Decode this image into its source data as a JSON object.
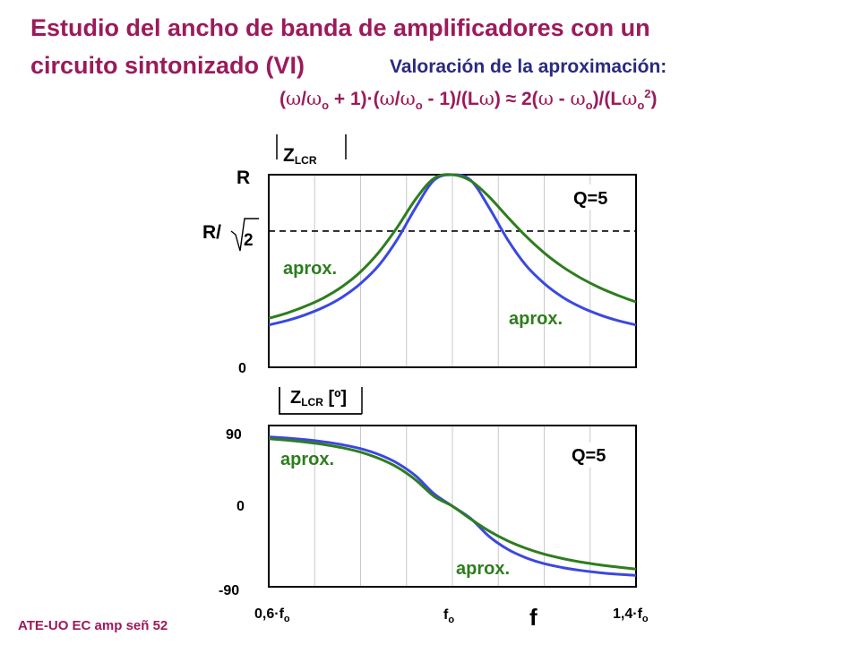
{
  "header": {
    "title_line1": "Estudio del ancho de banda de amplificadores con un",
    "title_line2": "circuito sintonizado (VI)",
    "subtitle": "Valoración de la aproximación:",
    "formula": {
      "open": "(",
      "w": "ω",
      "o": "o",
      "p1": " + 1)·(",
      "p2": " - 1)/(L",
      "p3": ") ≈ 2(",
      "p4": " - ",
      "p5": ")/(L",
      "two": "2",
      "close": ")"
    }
  },
  "footer": "ATE-UO EC amp señ 52",
  "colors": {
    "exact": "#2e7d1e",
    "approx": "#3b48e0",
    "title": "#9c1a5a",
    "subtitle": "#2a2a80"
  },
  "chart_data": [
    {
      "type": "line",
      "title": "|Z_LCR|",
      "title_text": {
        "Z": "Z",
        "sub": "LCR"
      },
      "ylabel_top": "R",
      "ylabel_ref": "R/√2",
      "ylabel_ref_parts": {
        "R": "R/",
        "two": "2"
      },
      "ylabel_bottom": "0",
      "reference_line": {
        "value": 0.7071,
        "style": "dashed"
      },
      "annotation_q": "Q=5",
      "annotation_approx": [
        "aprox.",
        "aprox."
      ],
      "x_range": [
        0.6,
        1.4
      ],
      "y_range": [
        0,
        1
      ],
      "x": [
        0.6,
        0.64,
        0.68,
        0.72,
        0.76,
        0.8,
        0.84,
        0.88,
        0.92,
        0.96,
        1.0,
        1.04,
        1.08,
        1.12,
        1.16,
        1.2,
        1.24,
        1.28,
        1.32,
        1.36,
        1.4
      ],
      "series": [
        {
          "values": [
            0.254,
            0.282,
            0.317,
            0.361,
            0.419,
            0.496,
            0.598,
            0.727,
            0.873,
            0.981,
            1.0,
            0.968,
            0.885,
            0.781,
            0.681,
            0.594,
            0.522,
            0.463,
            0.414,
            0.374,
            0.339
          ]
        },
        {
          "values": [
            0.22,
            0.243,
            0.273,
            0.312,
            0.364,
            0.435,
            0.53,
            0.664,
            0.829,
            0.971,
            1.0,
            0.971,
            0.829,
            0.664,
            0.53,
            0.435,
            0.364,
            0.312,
            0.273,
            0.243,
            0.22
          ]
        }
      ]
    },
    {
      "type": "line",
      "title": "∠Z_LCR [º]",
      "title_text": {
        "Z": "Z",
        "sub": "LCR",
        "unit": " [º]"
      },
      "yticks": [
        "90",
        "0",
        "-90"
      ],
      "annotation_q": "Q=5",
      "annotation_approx": [
        "aprox.",
        "aprox."
      ],
      "xticks": {
        "left": {
          "main": "0,6·f",
          "sub": "o"
        },
        "center": {
          "main": "f",
          "sub": "o"
        },
        "right": {
          "main": "1,4·f",
          "sub": "o"
        }
      },
      "xlabel": "f",
      "x_range": [
        0.6,
        1.4
      ],
      "y_range": [
        -90,
        90
      ],
      "x": [
        0.6,
        0.64,
        0.68,
        0.72,
        0.76,
        0.8,
        0.84,
        0.88,
        0.92,
        0.96,
        1.0,
        1.04,
        1.08,
        1.12,
        1.16,
        1.2,
        1.24,
        1.28,
        1.32,
        1.36,
        1.4
      ],
      "series": [
        {
          "values": [
            75.3,
            73.6,
            71.5,
            68.8,
            65.2,
            60.3,
            53.2,
            43.4,
            29.2,
            11.0,
            0.0,
            -14.5,
            -27.8,
            -38.6,
            -47.0,
            -53.6,
            -58.5,
            -62.4,
            -65.5,
            -68.0,
            -70.2
          ]
        },
        {
          "values": [
            77.3,
            76.0,
            74.2,
            71.8,
            68.6,
            64.2,
            57.6,
            48.0,
            33.8,
            13.8,
            0.0,
            -13.8,
            -33.8,
            -48.0,
            -57.6,
            -64.2,
            -68.6,
            -71.8,
            -74.2,
            -76.0,
            -77.3
          ]
        }
      ]
    }
  ]
}
